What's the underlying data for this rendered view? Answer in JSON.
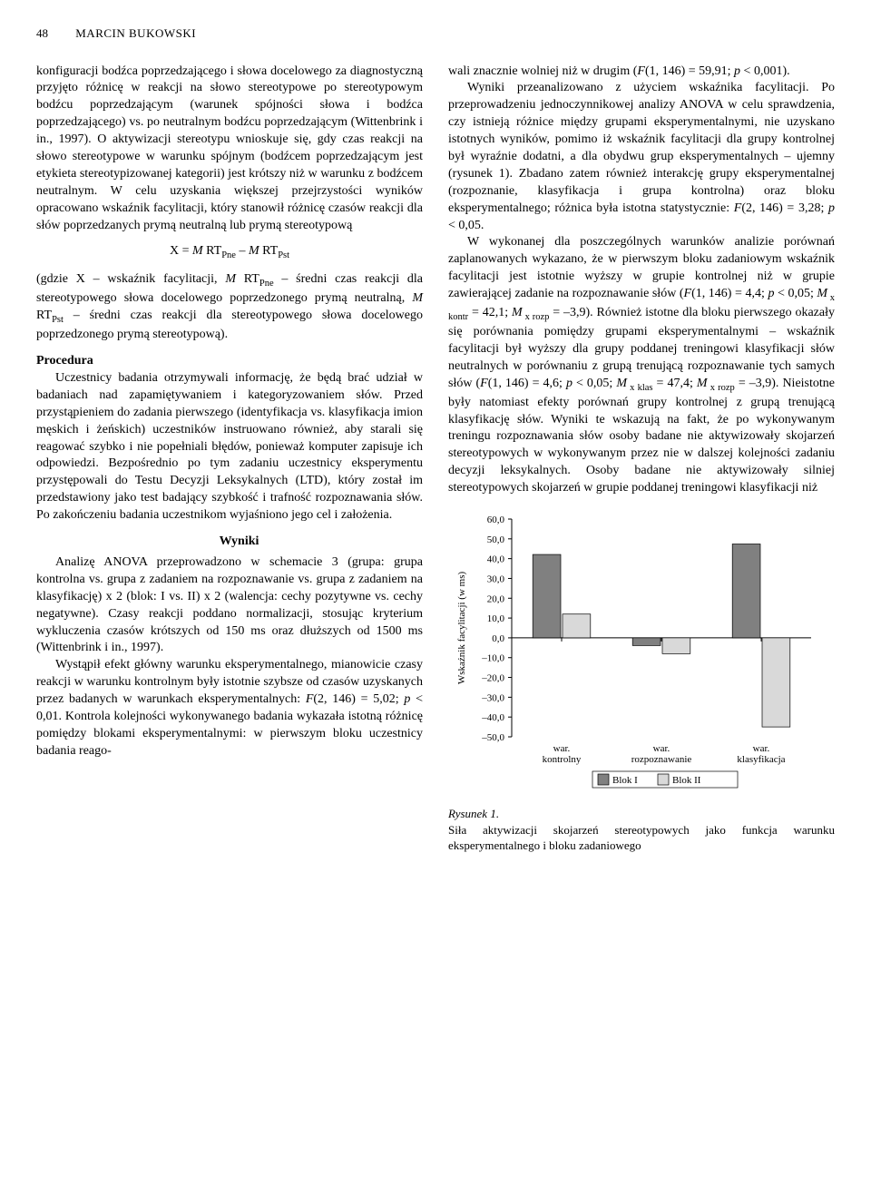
{
  "header": {
    "page_number": "48",
    "author": "MARCIN BUKOWSKI"
  },
  "left_column": {
    "p1": "konfiguracji bodźca poprzedzającego i słowa docelowego za diagnostyczną przyjęto różnicę w reakcji na słowo stereotypowe po stereotypowym bodźcu poprzedzającym (warunek spójności słowa i bodźca poprzedzającego) vs. po neutralnym bodźcu poprzedzającym (Wittenbrink i in., 1997). O aktywizacji stereotypu wnioskuje się, gdy czas reakcji na słowo stereotypowe w warunku spójnym (bodźcem poprzedzającym jest etykieta stereotypizowanej kategorii) jest krótszy niż w warunku z bodźcem neutralnym. W celu uzyskania większej przejrzystości wyników opracowano wskaźnik facylitacji, który stanowił różnicę czasów reakcji dla słów poprzedzanych prymą neutralną lub prymą stereotypową",
    "formula_pre": "X = ",
    "formula_m1": "M",
    "formula_rt1": " RT",
    "formula_sub1": "Pne",
    "formula_minus": " – ",
    "formula_m2": "M",
    "formula_rt2": " RT",
    "formula_sub2": "Pst",
    "p2a": "(gdzie X – wskaźnik facylitacji, ",
    "p2_m1": "M",
    "p2_rt1": " RT",
    "p2_sub1": "Pne",
    "p2b": " – średni czas reakcji dla stereotypowego słowa docelowego poprzedzonego prymą neutralną, ",
    "p2_m2": "M",
    "p2_rt2": " RT",
    "p2_sub2": "Pst",
    "p2c": " – średni czas reakcji dla stereotypowego słowa docelowego poprzedzonego prymą stereotypową).",
    "proc_head": "Procedura",
    "p3": "Uczestnicy badania otrzymywali informację, że będą brać udział w badaniach nad zapamiętywaniem i kategoryzowaniem słów. Przed przystąpieniem do zadania pierwszego (identyfikacja vs. klasyfikacja imion męskich i żeńskich) uczestników instruowano również, aby starali się reagować szybko i nie popełniali błędów, ponieważ komputer zapisuje ich odpowiedzi. Bezpośrednio po tym zadaniu uczestnicy eksperymentu przystępowali do Testu Decyzji Leksykalnych (LTD), który został im przedstawiony jako test badający szybkość i trafność rozpoznawania słów. Po zakończeniu badania uczestnikom wyjaśniono jego cel i założenia.",
    "wyniki_head": "Wyniki",
    "p4": "Analizę ANOVA przeprowadzono w schemacie 3 (grupa: grupa kontrolna vs. grupa z zadaniem na rozpoznawanie vs. grupa z zadaniem na klasyfikację) x 2 (blok: I vs. II) x 2 (walencja: cechy pozytywne vs. cechy negatywne). Czasy reakcji poddano normalizacji, stosując kryterium wykluczenia czasów krótszych od 150 ms oraz dłuższych od 1500 ms (Wittenbrink i in., 1997).",
    "p5a": "Wystąpił efekt główny warunku eksperymentalnego, mianowicie czasy reakcji w warunku kontrolnym były istotnie szybsze od czasów uzyskanych przez badanych w warunkach eksperymentalnych: ",
    "p5_f": "F",
    "p5b": "(2, 146) = 5,02; ",
    "p5_p": "p",
    "p5c": " < 0,01. Kontrola kolejności wykonywanego badania wykazała istotną różnicę pomiędzy blokami eksperymentalnymi: w pierwszym bloku uczestnicy badania reago-"
  },
  "right_column": {
    "p1a": "wali znacznie wolniej niż w drugim (",
    "p1_f": "F",
    "p1b": "(1, 146) = 59,91; ",
    "p1_p": "p",
    "p1c": " < 0,001).",
    "p2a": "Wyniki przeanalizowano z użyciem wskaźnika facylitacji. Po przeprowadzeniu jednoczynnikowej analizy ANOVA w celu sprawdzenia, czy istnieją różnice między grupami eksperymentalnymi, nie uzyskano istotnych wyników, pomimo iż wskaźnik facylitacji dla grupy kontrolnej był wyraźnie dodatni, a dla obydwu grup eksperymentalnych – ujemny (rysunek 1). Zbadano zatem również interakcję grupy eksperymentalnej (rozpoznanie, klasyfikacja i grupa kontrolna) oraz bloku eksperymentalnego; różnica była istotna statystycznie: ",
    "p2_f": "F",
    "p2b": "(2, 146) = 3,28; ",
    "p2_p": "p",
    "p2c": " < 0,05.",
    "p3a": "W wykonanej dla poszczególnych warunków analizie porównań zaplanowanych wykazano, że w pierwszym bloku zadaniowym wskaźnik facylitacji jest istotnie wyższy w grupie kontrolnej niż w grupie zawierającej zadanie na rozpoznawanie słów (",
    "p3_f1": "F",
    "p3b": "(1, 146) = 4,4; ",
    "p3_p1": "p",
    "p3c": " < 0,05; ",
    "p3_m1": "M",
    "p3_sub1": " x kontr",
    "p3d": " = 42,1; ",
    "p3_m2": "M",
    "p3_sub2": " x rozp",
    "p3e": " = –3,9). Również istotne dla bloku pierwszego okazały się porównania pomiędzy grupami eksperymentalnymi – wskaźnik facylitacji był wyższy dla grupy poddanej treningowi klasyfikacji słów neutralnych w porównaniu z grupą trenującą rozpoznawanie tych samych słów (",
    "p3_f2": "F",
    "p3f": "(1, 146) = 4,6; ",
    "p3_p2": "p",
    "p3g": " < 0,05; ",
    "p3_m3": "M",
    "p3_sub3": " x klas",
    "p3h": " = 47,4; ",
    "p3_m4": "M",
    "p3_sub4": " x rozp",
    "p3i": " = –3,9). Nieistotne były natomiast efekty porównań grupy kontrolnej z grupą trenującą klasyfikację słów. Wyniki te wskazują na fakt, że po wykonywanym treningu rozpoznawania słów osoby badane nie aktywizowały skojarzeń stereotypowych w wykonywanym przez nie w dalszej kolejności zadaniu decyzji leksykalnych. Osoby badane nie aktywizowały silniej stereotypowych skojarzeń w grupie poddanej treningowi klasyfikacji niż"
  },
  "figure": {
    "type": "bar",
    "categories": [
      "war.\nkontrolny",
      "war.\nrozpoznawanie",
      "war.\nklasyfikacja"
    ],
    "series": [
      {
        "name": "Blok I",
        "color": "#808080",
        "values": [
          42.1,
          -3.9,
          47.4
        ]
      },
      {
        "name": "Blok II",
        "color": "#d9d9d9",
        "values": [
          12.0,
          -8.0,
          -45.0
        ]
      }
    ],
    "y_axis": {
      "label": "Wskaźnik facylitacji (w ms)",
      "min": -50,
      "max": 60,
      "step": 10,
      "ticks": [
        "60,0",
        "50,0",
        "40,0",
        "30,0",
        "20,0",
        "10,0",
        "0,0",
        "–10,0",
        "–20,0",
        "–30,0",
        "–40,0",
        "–50,0"
      ]
    },
    "legend_box_border": "#000000",
    "axis_color": "#000000",
    "background": "#ffffff",
    "font_size_axis": 11,
    "caption_title": "Rysunek 1.",
    "caption_body": "Siła aktywizacji skojarzeń stereotypowych jako funkcja warunku eksperymentalnego i bloku zadaniowego"
  }
}
